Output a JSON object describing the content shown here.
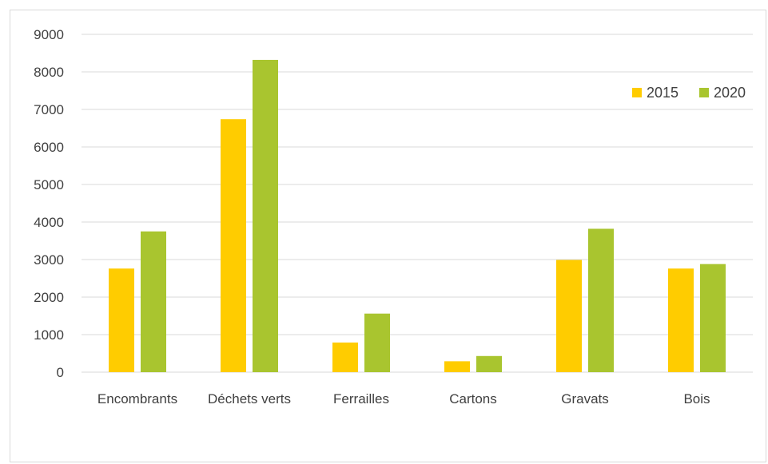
{
  "chart_data": {
    "type": "bar",
    "categories": [
      "Encombrants",
      "Déchets verts",
      "Ferrailles",
      "Cartons",
      "Gravats",
      "Bois"
    ],
    "series": [
      {
        "name": "2015",
        "color": "#FFCC00",
        "values": [
          2760,
          6740,
          790,
          290,
          2990,
          2760
        ]
      },
      {
        "name": "2020",
        "color": "#A9C52F",
        "values": [
          3750,
          8320,
          1560,
          430,
          3820,
          2880
        ]
      }
    ],
    "title": "",
    "xlabel": "",
    "ylabel": "",
    "ylim": [
      0,
      9000
    ],
    "yticks": [
      0,
      1000,
      2000,
      3000,
      4000,
      5000,
      6000,
      7000,
      8000,
      9000
    ],
    "grid": true,
    "legend_position": "top-right"
  }
}
